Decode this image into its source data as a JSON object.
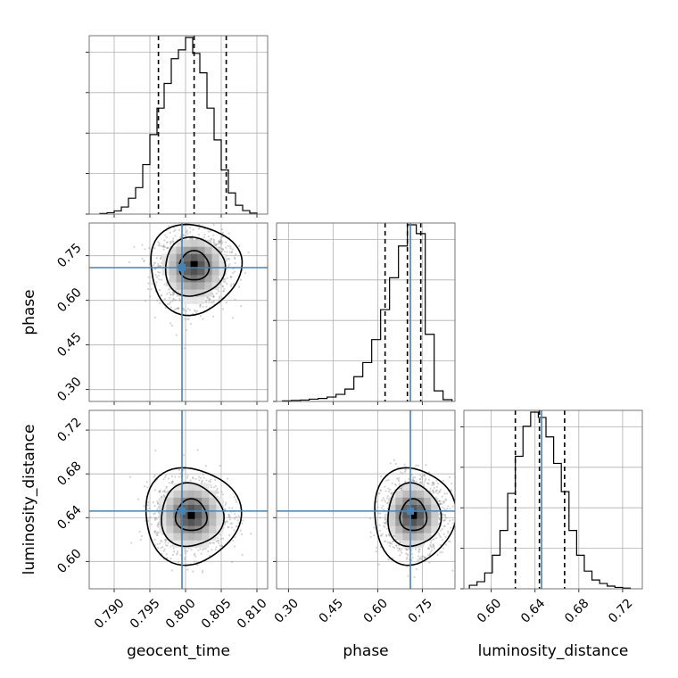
{
  "chart_data": {
    "type": "corner",
    "parameters": [
      "geocent_time",
      "phase",
      "luminosity_distance"
    ],
    "truth_color": "#4682b4",
    "truths": [
      0.7995,
      0.71,
      0.646
    ],
    "ranges": {
      "geocent_time": [
        0.7865,
        0.8115
      ],
      "phase": [
        0.26,
        0.86
      ],
      "luminosity_distance": [
        0.575,
        0.738
      ]
    },
    "ticks": {
      "geocent_time": [
        "0.790",
        "0.795",
        "0.800",
        "0.805",
        "0.810"
      ],
      "phase": [
        "0.30",
        "0.45",
        "0.60",
        "0.75"
      ],
      "luminosity_distance": [
        "0.60",
        "0.64",
        "0.68",
        "0.72"
      ]
    },
    "marginals": {
      "geocent_time": {
        "quantiles": [
          0.7962,
          0.8012,
          0.8057
        ],
        "edges": [
          0.788,
          0.789,
          0.79,
          0.791,
          0.792,
          0.793,
          0.794,
          0.795,
          0.796,
          0.797,
          0.798,
          0.799,
          0.8,
          0.801,
          0.802,
          0.803,
          0.804,
          0.805,
          0.806,
          0.807,
          0.808,
          0.809,
          0.81
        ],
        "counts": [
          0.3,
          0.8,
          1.8,
          4,
          9,
          15,
          28,
          45,
          60,
          74,
          88,
          93,
          100,
          91,
          80,
          60,
          42,
          25,
          12,
          5,
          2,
          0.6
        ]
      },
      "phase": {
        "quantiles": [
          0.625,
          0.7,
          0.745
        ],
        "edges": [
          0.28,
          0.31,
          0.34,
          0.37,
          0.4,
          0.43,
          0.46,
          0.49,
          0.52,
          0.55,
          0.58,
          0.61,
          0.64,
          0.67,
          0.7,
          0.73,
          0.76,
          0.79,
          0.82,
          0.85
        ],
        "counts": [
          0.3,
          0.6,
          0.8,
          1.3,
          1.7,
          2.5,
          4,
          7,
          14,
          22,
          35,
          52,
          70,
          88,
          100,
          95,
          38,
          6,
          1
        ]
      },
      "luminosity_distance": {
        "quantiles": [
          0.622,
          0.644,
          0.667
        ],
        "edges": [
          0.58,
          0.587,
          0.594,
          0.601,
          0.608,
          0.615,
          0.622,
          0.629,
          0.636,
          0.643,
          0.65,
          0.657,
          0.664,
          0.671,
          0.678,
          0.685,
          0.692,
          0.699,
          0.706,
          0.713,
          0.72,
          0.727
        ],
        "counts": [
          2,
          4,
          9,
          19,
          33,
          54,
          75,
          92,
          100,
          97,
          86,
          71,
          55,
          33,
          19,
          10,
          5,
          3,
          1.5,
          0.8,
          0.4
        ]
      }
    },
    "joint": [
      {
        "x": "geocent_time",
        "y": "phase",
        "center": [
          0.8012,
          0.72
        ],
        "sigma": [
          0.0021,
          0.045
        ],
        "skew_y": -0.35
      },
      {
        "x": "geocent_time",
        "y": "luminosity_distance",
        "center": [
          0.8008,
          0.642
        ],
        "sigma": [
          0.0022,
          0.0145
        ],
        "skew_y": 0
      },
      {
        "x": "phase",
        "y": "luminosity_distance",
        "center": [
          0.72,
          0.642
        ],
        "sigma": [
          0.045,
          0.0145
        ],
        "skew_y": 0
      }
    ],
    "contour_levels": [
      0.39,
      0.86,
      0.99
    ],
    "grid": true
  }
}
